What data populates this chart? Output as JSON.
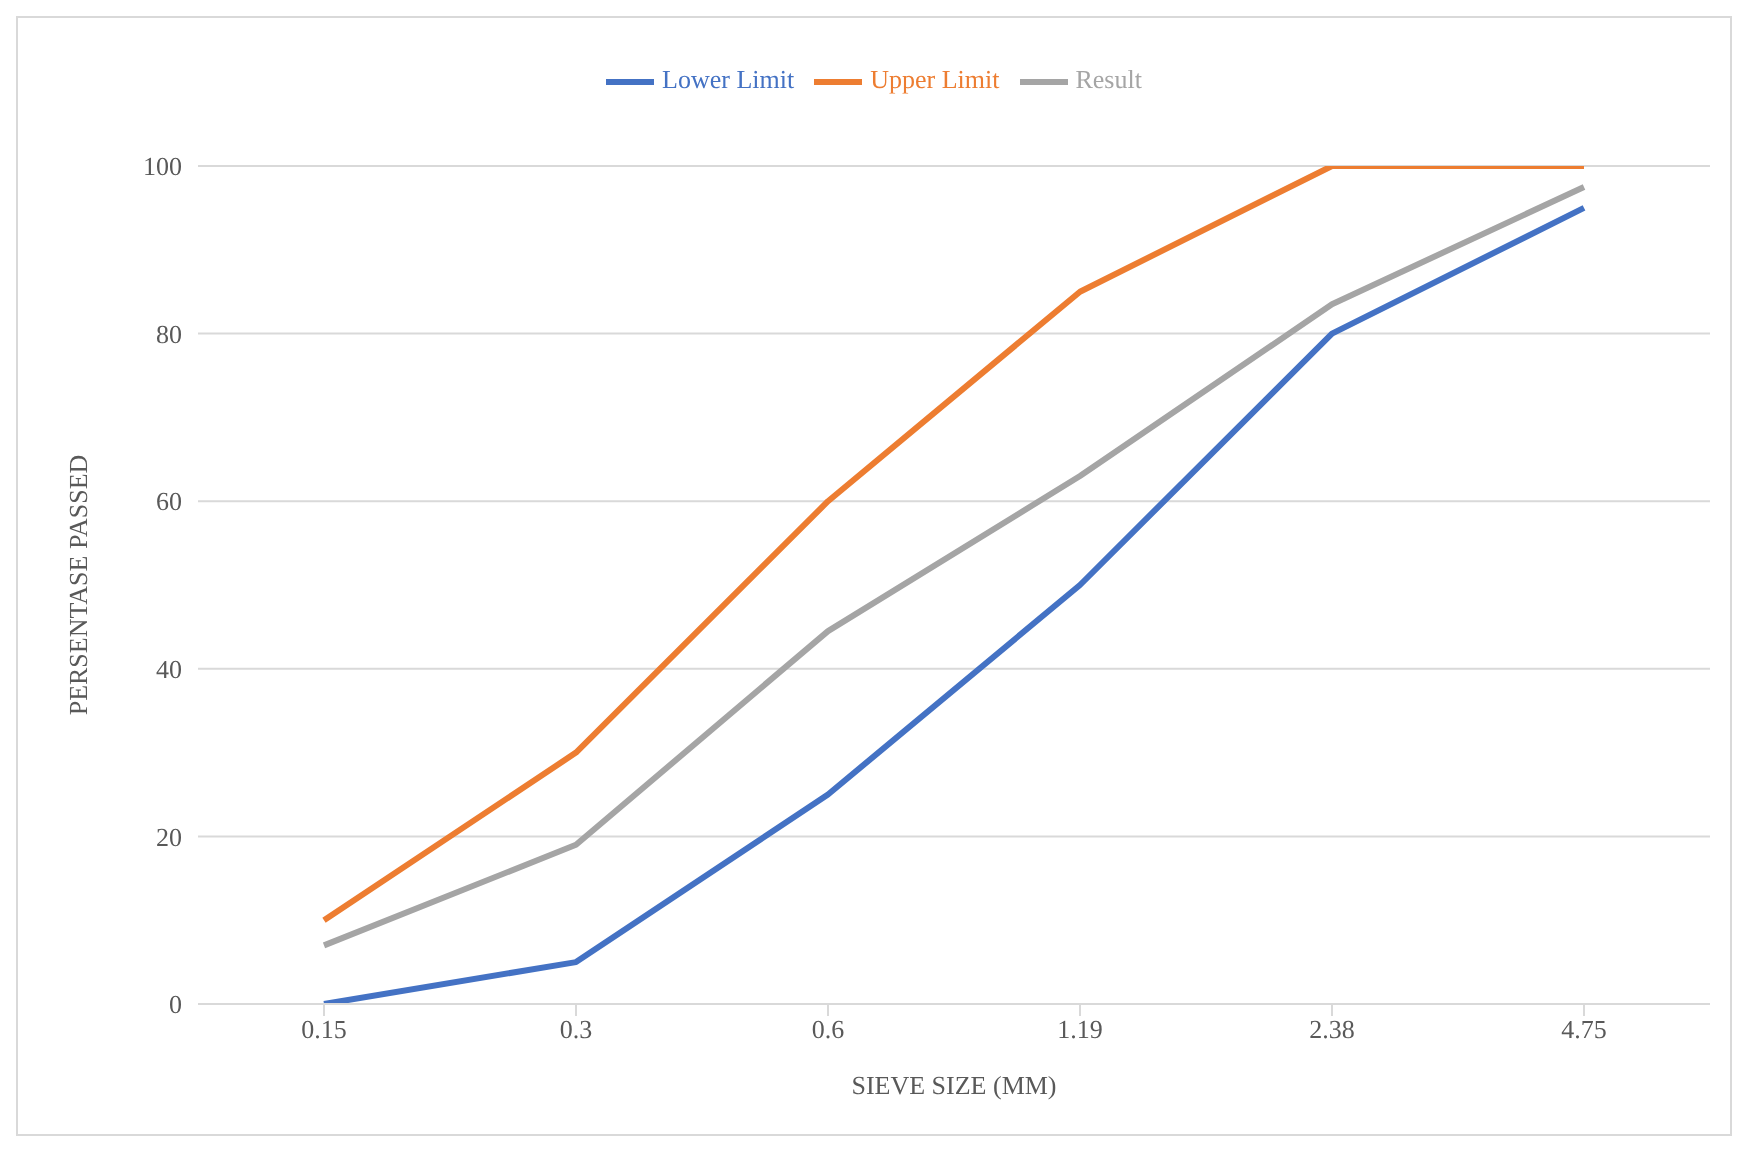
{
  "chart_data": {
    "type": "line",
    "xlabel": "SIEVE SIZE (MM)",
    "ylabel": "PERSENTASE PASSED",
    "categories": [
      "0.15",
      "0.3",
      "0.6",
      "1.19",
      "2.38",
      "4.75"
    ],
    "series": [
      {
        "name": "Lower Limit",
        "color": "#4472c4",
        "values": [
          0,
          5,
          25,
          50,
          80,
          95
        ]
      },
      {
        "name": "Upper Limit",
        "color": "#ed7d31",
        "values": [
          10,
          30,
          60,
          85,
          100,
          100
        ]
      },
      {
        "name": "Result",
        "color": "#a5a5a5",
        "values": [
          7,
          19,
          44.5,
          63,
          83.5,
          97.5
        ]
      }
    ],
    "ylim": [
      0,
      100
    ],
    "yticks": [
      0,
      20,
      40,
      60,
      80,
      100
    ],
    "grid": "y",
    "legend": "top",
    "marker": "none",
    "line_style": "solid"
  }
}
